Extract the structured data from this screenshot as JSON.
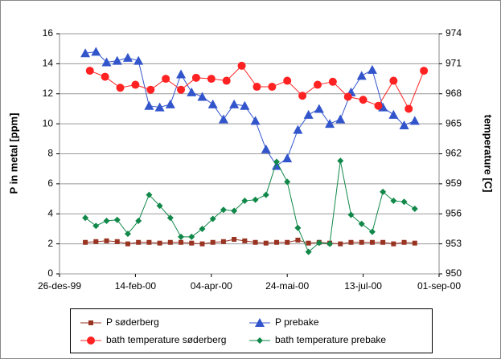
{
  "chart_data": {
    "type": "line",
    "ylabel": "P in metal [ppm]",
    "y2label": "temperature [C]",
    "xlim": [
      "1999-12-26",
      "2000-09-01"
    ],
    "xticks": [
      {
        "value": "1999-12-26",
        "label": "26-des-99"
      },
      {
        "value": "2000-02-14",
        "label": "14-feb-00"
      },
      {
        "value": "2000-04-04",
        "label": "04-apr-00"
      },
      {
        "value": "2000-05-24",
        "label": "24-mai-00"
      },
      {
        "value": "2000-07-13",
        "label": "13-jul-00"
      },
      {
        "value": "2000-09-01",
        "label": "01-sep-00"
      }
    ],
    "ylim": [
      0,
      16
    ],
    "yticks": [
      0,
      2,
      4,
      6,
      8,
      10,
      12,
      14,
      16
    ],
    "y2lim": [
      950,
      974
    ],
    "y2ticks": [
      950,
      953,
      956,
      959,
      962,
      965,
      968,
      971,
      974
    ],
    "grid": true,
    "legend": "bottom",
    "series": [
      {
        "name": "P søderberg",
        "color": "#993322",
        "marker": "square",
        "x": [
          "2000-01-12",
          "2000-01-19",
          "2000-01-26",
          "2000-02-02",
          "2000-02-09",
          "2000-02-16",
          "2000-02-23",
          "2000-03-01",
          "2000-03-08",
          "2000-03-15",
          "2000-03-22",
          "2000-03-29",
          "2000-04-05",
          "2000-04-12",
          "2000-04-19",
          "2000-04-26",
          "2000-05-03",
          "2000-05-10",
          "2000-05-17",
          "2000-05-24",
          "2000-05-31",
          "2000-06-07",
          "2000-06-14",
          "2000-06-21",
          "2000-06-28",
          "2000-07-05",
          "2000-07-12",
          "2000-07-19",
          "2000-07-26",
          "2000-08-02",
          "2000-08-09",
          "2000-08-16"
        ],
        "values": [
          2.1,
          2.15,
          2.2,
          2.15,
          2.0,
          2.1,
          2.1,
          2.05,
          2.1,
          2.1,
          2.05,
          2.0,
          2.1,
          2.15,
          2.3,
          2.2,
          2.1,
          2.05,
          2.1,
          2.1,
          2.25,
          2.05,
          2.1,
          2.05,
          2.0,
          2.1,
          2.1,
          2.1,
          2.1,
          2.0,
          2.1,
          2.05
        ]
      },
      {
        "name": "P prebake",
        "color": "#3355cc",
        "marker": "triangle",
        "x": [
          "2000-01-12",
          "2000-01-19",
          "2000-01-26",
          "2000-02-02",
          "2000-02-09",
          "2000-02-16",
          "2000-02-23",
          "2000-03-01",
          "2000-03-08",
          "2000-03-15",
          "2000-03-22",
          "2000-03-29",
          "2000-04-05",
          "2000-04-12",
          "2000-04-19",
          "2000-04-26",
          "2000-05-03",
          "2000-05-10",
          "2000-05-17",
          "2000-05-24",
          "2000-05-31",
          "2000-06-07",
          "2000-06-14",
          "2000-06-21",
          "2000-06-28",
          "2000-07-05",
          "2000-07-12",
          "2000-07-19",
          "2000-07-26",
          "2000-08-02",
          "2000-08-09",
          "2000-08-16"
        ],
        "values": [
          14.7,
          14.8,
          14.1,
          14.2,
          14.4,
          14.2,
          11.2,
          11.1,
          11.3,
          13.3,
          12.1,
          11.8,
          11.3,
          10.3,
          11.3,
          11.2,
          10.2,
          8.3,
          7.2,
          7.7,
          9.6,
          10.6,
          11.0,
          10.0,
          10.3,
          12.1,
          13.2,
          13.6,
          11.1,
          10.6,
          9.9,
          10.2
        ]
      },
      {
        "name": "bath temperature søderberg",
        "color": "#ff2222",
        "marker": "circle",
        "axis": "y2",
        "x": [
          "2000-01-15",
          "2000-01-25",
          "2000-02-04",
          "2000-02-14",
          "2000-02-24",
          "2000-03-05",
          "2000-03-15",
          "2000-03-25",
          "2000-04-04",
          "2000-04-14",
          "2000-04-24",
          "2000-05-04",
          "2000-05-14",
          "2000-05-24",
          "2000-06-03",
          "2000-06-13",
          "2000-06-23",
          "2000-07-03",
          "2000-07-13",
          "2000-07-23",
          "2000-08-02",
          "2000-08-12",
          "2000-08-22"
        ],
        "values": [
          970.3,
          969.7,
          968.6,
          968.9,
          968.4,
          969.5,
          968.4,
          969.6,
          969.5,
          969.3,
          970.8,
          968.7,
          968.7,
          969.3,
          967.8,
          968.9,
          969.2,
          967.7,
          967.4,
          966.8,
          969.3,
          966.5,
          970.3
        ]
      },
      {
        "name": "bath temperature prebake",
        "color": "#11884a",
        "marker": "diamond",
        "axis": "y2",
        "x": [
          "2000-01-12",
          "2000-01-19",
          "2000-01-26",
          "2000-02-02",
          "2000-02-09",
          "2000-02-16",
          "2000-02-23",
          "2000-03-01",
          "2000-03-08",
          "2000-03-15",
          "2000-03-22",
          "2000-03-29",
          "2000-04-05",
          "2000-04-12",
          "2000-04-19",
          "2000-04-26",
          "2000-05-03",
          "2000-05-10",
          "2000-05-17",
          "2000-05-24",
          "2000-05-31",
          "2000-06-07",
          "2000-06-14",
          "2000-06-21",
          "2000-06-28",
          "2000-07-05",
          "2000-07-12",
          "2000-07-19",
          "2000-07-26",
          "2000-08-02",
          "2000-08-09",
          "2000-08-16"
        ],
        "values": [
          955.6,
          954.8,
          955.3,
          955.4,
          954.0,
          955.3,
          957.9,
          956.8,
          955.6,
          953.7,
          953.7,
          954.5,
          955.5,
          956.4,
          956.3,
          957.3,
          957.4,
          957.9,
          961.2,
          959.2,
          954.6,
          952.2,
          953.1,
          953.0,
          961.3,
          955.9,
          955.0,
          954.2,
          958.2,
          957.3,
          957.2,
          956.5
        ]
      }
    ]
  }
}
